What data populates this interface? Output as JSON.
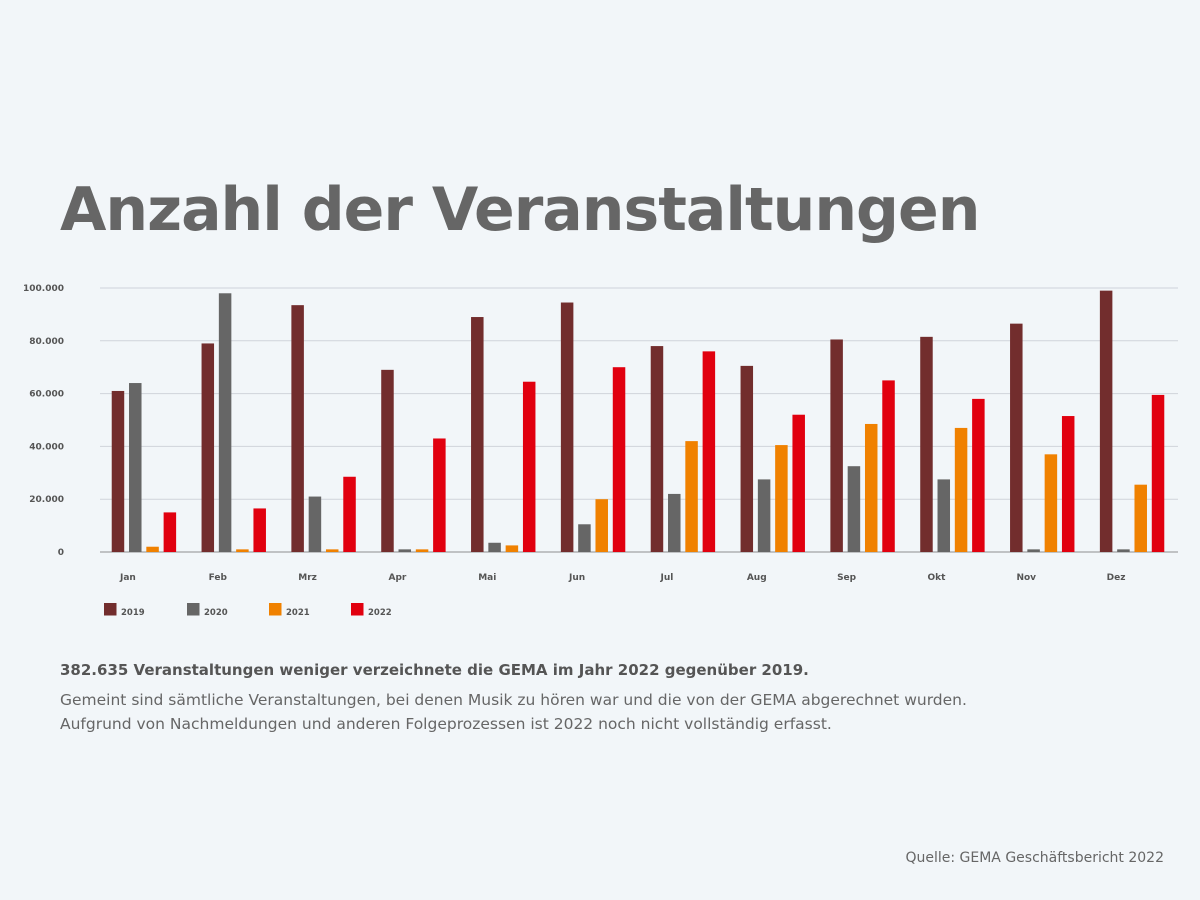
{
  "colors": {
    "2019": "#722d2d",
    "2020": "#666666",
    "2021": "#f08100",
    "2022": "#e1000f",
    "grid": "#cfd3da",
    "axis": "#8f8f8f"
  },
  "chart_data": {
    "type": "bar",
    "title": "Anzahl der Veranstaltungen",
    "xlabel": "",
    "ylabel": "",
    "ylim": [
      0,
      100000
    ],
    "yticks": [
      "0",
      "20.000",
      "40.000",
      "60.000",
      "80.000",
      "100.000"
    ],
    "categories": [
      "Jan",
      "Feb",
      "Mrz",
      "Apr",
      "Mai",
      "Jun",
      "Jul",
      "Aug",
      "Sep",
      "Okt",
      "Nov",
      "Dez"
    ],
    "series": [
      {
        "name": "2019",
        "values": [
          61000,
          79000,
          93500,
          69000,
          89000,
          94500,
          78000,
          70500,
          80500,
          81500,
          86500,
          99000
        ]
      },
      {
        "name": "2020",
        "values": [
          64000,
          98000,
          21000,
          1000,
          3500,
          10500,
          22000,
          27500,
          32500,
          27500,
          1000,
          1000
        ]
      },
      {
        "name": "2021",
        "values": [
          2000,
          1000,
          1000,
          1000,
          2500,
          20000,
          42000,
          40500,
          48500,
          47000,
          37000,
          25500
        ]
      },
      {
        "name": "2022",
        "values": [
          15000,
          16500,
          28500,
          43000,
          64500,
          70000,
          76000,
          52000,
          65000,
          58000,
          51500,
          59500
        ]
      }
    ]
  },
  "text": {
    "highlight": "382.635 Veranstaltungen weniger verzeichnete die GEMA im Jahr 2022 gegenüber 2019.",
    "description_line1": "Gemeint sind sämtliche Veranstaltungen, bei denen Musik zu hören war und die von der GEMA abgerechnet wurden.",
    "description_line2": "Aufgrund von Nachmeldungen und anderen Folgeprozessen ist 2022 noch nicht vollständig erfasst.",
    "source": "Quelle: GEMA Geschäftsbericht 2022"
  }
}
